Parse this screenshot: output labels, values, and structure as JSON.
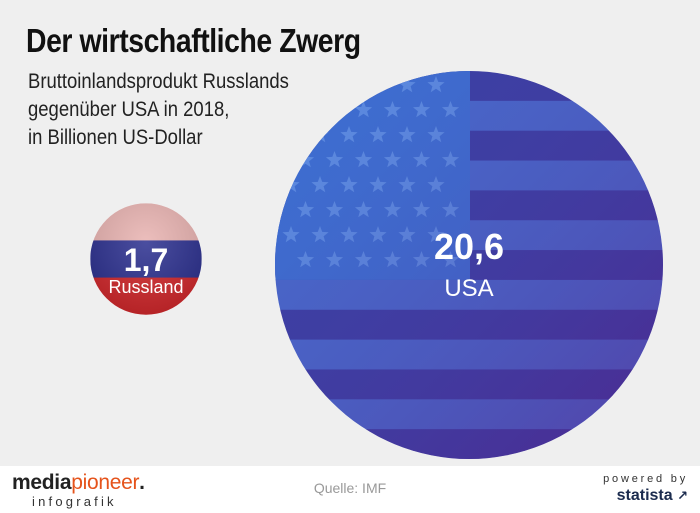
{
  "header": {
    "title": "Der wirtschaftliche Zwerg",
    "subtitle_lines": [
      "Bruttoinlandsprodukt Russlands",
      "gegenüber USA in 2018,",
      "in Billionen US-Dollar"
    ]
  },
  "chart_data": {
    "type": "bubble",
    "title": "Der wirtschaftliche Zwerg",
    "subtitle": "Bruttoinlandsprodukt Russlands gegenüber USA in 2018, in Billionen US-Dollar",
    "unit": "Billionen US-Dollar",
    "year": 2018,
    "categories": [
      "Russland",
      "USA"
    ],
    "values": [
      1.7,
      20.6
    ],
    "value_labels": [
      "1,7",
      "20,6"
    ],
    "colors": {
      "russia": [
        "#ffffff",
        "#2b2f8f",
        "#d2262a"
      ],
      "usa_stripe_light": "#4b68c8",
      "usa_stripe_dark": "#3b3698",
      "usa_canton": "#3e6fd0"
    }
  },
  "footer": {
    "source": "Quelle: IMF",
    "logo_main_prefix": "media",
    "logo_main_accent": "pioneer",
    "logo_main_suffix": ".",
    "logo_sub": "infografik",
    "powered_by": "powered by",
    "powered_brand": "statista"
  }
}
